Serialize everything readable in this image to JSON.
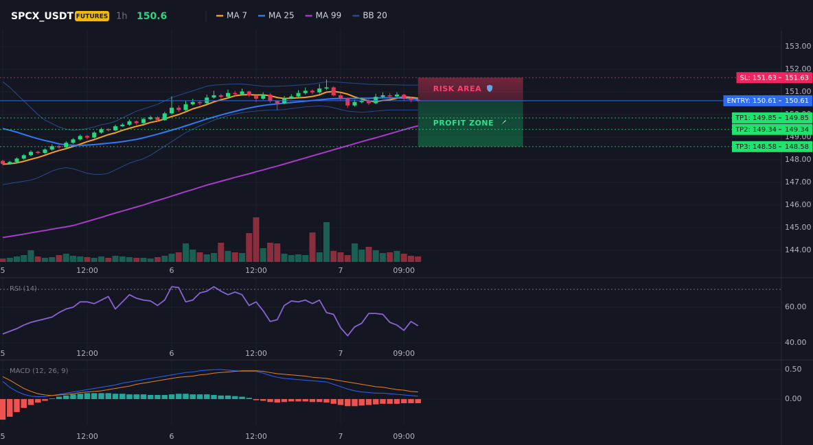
{
  "header": {
    "symbol": "SPCX_USDT",
    "badge": "FUTURES",
    "interval": "1h",
    "price": 150.6
  },
  "chart_data": [
    {
      "type": "candlestick",
      "xlim": [
        -0.39,
        110.63
      ],
      "xticks": [
        {
          "value": 0,
          "label": "5"
        },
        {
          "value": 12,
          "label": "12:00"
        },
        {
          "value": 24,
          "label": "6"
        },
        {
          "value": 36,
          "label": "12:00"
        },
        {
          "value": 48,
          "label": "7"
        },
        {
          "value": 57,
          "label": "09:00"
        }
      ],
      "ylim": [
        143.48,
        153.7
      ],
      "yticks": [
        {
          "value": 144,
          "label": "144.00"
        },
        {
          "value": 145,
          "label": "145.00"
        },
        {
          "value": 146,
          "label": "146.00"
        },
        {
          "value": 147,
          "label": "147.00"
        },
        {
          "value": 148,
          "label": "148.00"
        },
        {
          "value": 149,
          "label": "149.00"
        },
        {
          "value": 150,
          "label": "150.00"
        },
        {
          "value": 151,
          "label": "151.00"
        },
        {
          "value": 152,
          "label": "152.00"
        },
        {
          "value": 153,
          "label": "153.00"
        }
      ],
      "up_color": "#26d97f",
      "down_color": "#e8365a",
      "volume_colors": {
        "up": "#1b5e52",
        "down": "#8a2d3c"
      },
      "open": [
        147.95,
        147.82,
        147.9,
        148.05,
        148.2,
        148.35,
        148.3,
        148.45,
        148.6,
        148.55,
        148.75,
        148.9,
        149.05,
        148.98,
        149.2,
        149.35,
        149.3,
        149.48,
        149.55,
        149.7,
        149.62,
        149.8,
        149.88,
        149.75,
        150.05,
        150.3,
        150.2,
        150.45,
        150.55,
        150.5,
        150.75,
        150.85,
        150.78,
        150.95,
        150.9,
        151.02,
        150.85,
        150.7,
        150.88,
        150.6,
        150.5,
        150.72,
        150.8,
        150.95,
        151.05,
        150.98,
        151.15,
        151.2,
        150.85,
        150.7,
        150.4,
        150.55,
        150.62,
        150.5,
        150.78,
        150.85,
        150.8,
        150.88,
        150.7,
        150.65
      ],
      "high": [
        148.0,
        147.95,
        148.1,
        148.25,
        148.42,
        148.4,
        148.5,
        148.68,
        148.65,
        148.82,
        148.95,
        149.12,
        149.1,
        149.26,
        149.42,
        149.4,
        149.55,
        149.62,
        149.78,
        149.74,
        149.86,
        149.95,
        149.92,
        150.12,
        150.8,
        150.4,
        150.6,
        150.7,
        150.62,
        150.88,
        151.05,
        150.92,
        151.1,
        151.05,
        151.15,
        151.05,
        150.85,
        150.98,
        150.95,
        150.62,
        150.82,
        150.9,
        151.08,
        151.2,
        151.12,
        151.35,
        151.55,
        151.25,
        150.95,
        150.75,
        150.65,
        150.75,
        150.68,
        150.92,
        150.98,
        150.95,
        150.98,
        150.92,
        150.78,
        150.72
      ],
      "low": [
        147.75,
        147.78,
        147.86,
        148.0,
        148.15,
        148.25,
        148.26,
        148.4,
        148.48,
        148.5,
        148.7,
        148.85,
        148.9,
        148.94,
        149.15,
        149.25,
        149.26,
        149.45,
        149.5,
        149.55,
        149.58,
        149.75,
        149.7,
        149.72,
        150.0,
        150.12,
        150.15,
        150.4,
        150.42,
        150.46,
        150.7,
        150.7,
        150.74,
        150.82,
        150.85,
        150.78,
        150.55,
        150.65,
        150.52,
        150.2,
        150.45,
        150.68,
        150.75,
        150.88,
        150.9,
        150.92,
        151.08,
        150.8,
        150.62,
        150.3,
        150.35,
        150.5,
        150.42,
        150.46,
        150.72,
        150.7,
        150.74,
        150.62,
        150.55,
        150.56
      ],
      "close": [
        147.82,
        147.9,
        148.05,
        148.2,
        148.35,
        148.3,
        148.45,
        148.6,
        148.55,
        148.75,
        148.9,
        149.05,
        148.98,
        149.2,
        149.35,
        149.3,
        149.48,
        149.55,
        149.7,
        149.62,
        149.8,
        149.88,
        149.75,
        150.05,
        150.3,
        150.2,
        150.45,
        150.55,
        150.5,
        150.75,
        150.85,
        150.78,
        150.95,
        150.9,
        151.02,
        150.85,
        150.7,
        150.88,
        150.6,
        150.5,
        150.72,
        150.8,
        150.95,
        151.05,
        150.98,
        151.15,
        151.2,
        150.85,
        150.7,
        150.4,
        150.55,
        150.62,
        150.5,
        150.78,
        150.85,
        150.8,
        150.88,
        150.7,
        150.65,
        150.61
      ],
      "volume": [
        5,
        6,
        8,
        10,
        17,
        8,
        6,
        7,
        10,
        12,
        9,
        8,
        7,
        6,
        8,
        6,
        9,
        8,
        7,
        6,
        6,
        5,
        7,
        9,
        12,
        14,
        27,
        18,
        14,
        11,
        13,
        28,
        16,
        14,
        13,
        42,
        65,
        20,
        28,
        27,
        12,
        10,
        11,
        10,
        43,
        14,
        58,
        16,
        14,
        10,
        27,
        18,
        22,
        17,
        13,
        14,
        16,
        12,
        9,
        8
      ],
      "series": [
        {
          "name": "MA 7",
          "color": "#f7a21b",
          "values": [
            147.8,
            147.82,
            147.86,
            147.93,
            148.02,
            148.1,
            148.2,
            148.31,
            148.41,
            148.49,
            148.59,
            148.69,
            148.8,
            148.89,
            149.0,
            149.11,
            149.19,
            149.3,
            149.39,
            149.48,
            149.55,
            149.65,
            149.71,
            149.8,
            149.91,
            150.0,
            150.12,
            150.25,
            150.34,
            150.44,
            150.56,
            150.65,
            150.73,
            150.83,
            150.87,
            150.88,
            150.86,
            150.87,
            150.83,
            150.75,
            150.71,
            150.72,
            150.74,
            150.76,
            150.8,
            150.87,
            150.99,
            151.02,
            150.98,
            150.9,
            150.78,
            150.68,
            150.6,
            150.57,
            150.62,
            150.65,
            150.72,
            150.78,
            150.76,
            150.72
          ]
        },
        {
          "name": "MA 25",
          "color": "#3179f5",
          "values": [
            149.38,
            149.3,
            149.22,
            149.12,
            149.02,
            148.93,
            148.85,
            148.78,
            148.7,
            148.66,
            148.64,
            148.64,
            148.65,
            148.67,
            148.7,
            148.73,
            148.76,
            148.8,
            148.85,
            148.9,
            148.97,
            149.05,
            149.13,
            149.22,
            149.31,
            149.4,
            149.5,
            149.6,
            149.7,
            149.8,
            149.89,
            149.98,
            150.06,
            150.14,
            150.22,
            150.29,
            150.35,
            150.4,
            150.44,
            150.47,
            150.5,
            150.53,
            150.56,
            150.59,
            150.62,
            150.65,
            150.68,
            150.7,
            150.71,
            150.71,
            150.71,
            150.72,
            150.72,
            150.73,
            150.74,
            150.74,
            150.73,
            150.72,
            150.7,
            150.68
          ]
        },
        {
          "name": "MA 99",
          "color": "#a93bc9",
          "values": [
            144.56,
            144.61,
            144.66,
            144.71,
            144.77,
            144.82,
            144.87,
            144.93,
            144.98,
            145.03,
            145.09,
            145.18,
            145.27,
            145.36,
            145.45,
            145.55,
            145.64,
            145.73,
            145.82,
            145.91,
            146.0,
            146.1,
            146.2,
            146.29,
            146.39,
            146.49,
            146.59,
            146.68,
            146.78,
            146.88,
            146.96,
            147.05,
            147.13,
            147.22,
            147.3,
            147.38,
            147.47,
            147.55,
            147.64,
            147.72,
            147.81,
            147.9,
            147.99,
            148.08,
            148.17,
            148.26,
            148.35,
            148.44,
            148.53,
            148.62,
            148.71,
            148.8,
            148.89,
            148.97,
            149.06,
            149.15,
            149.24,
            149.33,
            149.42,
            149.5
          ]
        },
        {
          "name": "BB 20",
          "color": "#2a4a8c",
          "upper": [
            151.45,
            151.2,
            150.9,
            150.6,
            150.3,
            150.0,
            149.75,
            149.6,
            149.45,
            149.35,
            149.3,
            149.33,
            149.38,
            149.45,
            149.55,
            149.6,
            149.7,
            149.85,
            150.0,
            150.15,
            150.25,
            150.35,
            150.45,
            150.6,
            150.75,
            150.85,
            150.95,
            151.05,
            151.15,
            151.25,
            151.3,
            151.32,
            151.34,
            151.35,
            151.35,
            151.32,
            151.28,
            151.25,
            151.24,
            151.25,
            151.26,
            151.28,
            151.3,
            151.32,
            151.35,
            151.4,
            151.45,
            151.45,
            151.42,
            151.4,
            151.38,
            151.36,
            151.34,
            151.33,
            151.32,
            151.32,
            151.31,
            151.3,
            151.3,
            151.3
          ],
          "lower": [
            146.9,
            146.95,
            147.0,
            147.05,
            147.1,
            147.2,
            147.35,
            147.5,
            147.6,
            147.65,
            147.6,
            147.5,
            147.4,
            147.35,
            147.35,
            147.4,
            147.55,
            147.7,
            147.85,
            147.95,
            148.05,
            148.2,
            148.4,
            148.6,
            148.8,
            149.0,
            149.2,
            149.35,
            149.5,
            149.62,
            149.75,
            149.85,
            149.95,
            150.02,
            150.08,
            150.12,
            150.15,
            150.18,
            150.2,
            150.2,
            150.22,
            150.26,
            150.3,
            150.34,
            150.36,
            150.38,
            150.36,
            150.3,
            150.22,
            150.15,
            150.12,
            150.1,
            150.12,
            150.15,
            150.18,
            150.2,
            150.2,
            150.2,
            150.2,
            150.2
          ]
        }
      ],
      "levels": [
        {
          "label": "SL: 151.63",
          "value": 151.63,
          "color": "#f0245f"
        },
        {
          "label": "ENTRY: 150.61",
          "value": 150.61,
          "color": "#2f6bf0"
        },
        {
          "label": "TP1: 149.85",
          "value": 149.85,
          "color": "#1fe36e"
        },
        {
          "label": "TP2: 149.34",
          "value": 149.34,
          "color": "#1fe36e"
        },
        {
          "label": "TP3: 148.58",
          "value": 148.58,
          "color": "#1fe36e"
        }
      ],
      "zones": [
        {
          "label": "RISK AREA"
        },
        {
          "label": "PROFIT ZONE"
        }
      ]
    },
    {
      "type": "line",
      "title": "RSI (14)",
      "color": "#8a63d2",
      "xlim": [
        -0.39,
        110.63
      ],
      "xticks": [
        {
          "value": 0,
          "label": "5"
        },
        {
          "value": 12,
          "label": "12:00"
        },
        {
          "value": 24,
          "label": "6"
        },
        {
          "value": 36,
          "label": "12:00"
        },
        {
          "value": 48,
          "label": "7"
        },
        {
          "value": 57,
          "label": "09:00"
        }
      ],
      "ylim": [
        33.1,
        75.4
      ],
      "yticks": [
        {
          "value": 40,
          "label": "40.00"
        },
        {
          "value": 60,
          "label": "60.00"
        }
      ],
      "levels": [
        70
      ],
      "values": [
        45,
        46.5,
        48,
        50,
        51.5,
        52.5,
        53.5,
        54.5,
        57,
        59,
        60,
        63,
        63,
        62,
        64,
        66,
        59,
        63,
        67,
        65,
        64,
        63.5,
        61,
        64,
        71.5,
        71,
        63,
        64,
        68,
        69,
        71.5,
        69,
        67,
        68.5,
        67,
        61,
        63,
        58,
        52,
        53,
        61,
        63.5,
        63,
        64,
        62,
        64,
        57,
        56,
        48.5,
        44,
        49,
        51,
        56.5,
        56.5,
        56,
        51.5,
        50,
        47,
        52,
        49.6
      ]
    },
    {
      "type": "bar",
      "title": "MACD (12, 26, 9)",
      "xlim": [
        -0.39,
        110.63
      ],
      "xticks": [
        {
          "value": 0,
          "label": "5"
        },
        {
          "value": 12,
          "label": "12:00"
        },
        {
          "value": 24,
          "label": "6"
        },
        {
          "value": 36,
          "label": "12:00"
        },
        {
          "value": 48,
          "label": "7"
        },
        {
          "value": 57,
          "label": "09:00"
        }
      ],
      "ylim": [
        -0.5,
        0.628
      ],
      "yticks": [
        {
          "value": 0,
          "label": "0.00"
        },
        {
          "value": 0.5,
          "label": "0.50"
        }
      ],
      "colors": {
        "up": "#26a69a",
        "down": "#ef5350"
      },
      "values": [
        -0.35,
        -0.3,
        -0.22,
        -0.15,
        -0.1,
        -0.06,
        -0.03,
        0.01,
        0.04,
        0.06,
        0.08,
        0.09,
        0.1,
        0.1,
        0.1,
        0.1,
        0.09,
        0.09,
        0.08,
        0.08,
        0.08,
        0.07,
        0.07,
        0.07,
        0.08,
        0.09,
        0.09,
        0.08,
        0.08,
        0.08,
        0.07,
        0.06,
        0.06,
        0.05,
        0.04,
        0.02,
        -0.02,
        -0.03,
        -0.05,
        -0.06,
        -0.05,
        -0.04,
        -0.04,
        -0.04,
        -0.05,
        -0.05,
        -0.06,
        -0.08,
        -0.1,
        -0.12,
        -0.12,
        -0.11,
        -0.1,
        -0.09,
        -0.08,
        -0.08,
        -0.08,
        -0.07,
        -0.07,
        -0.07
      ],
      "series": [
        {
          "color": "#2962ff",
          "values": [
            0.3,
            0.2,
            0.13,
            0.08,
            0.05,
            0.04,
            0.04,
            0.06,
            0.08,
            0.1,
            0.12,
            0.14,
            0.16,
            0.18,
            0.2,
            0.22,
            0.24,
            0.27,
            0.29,
            0.31,
            0.33,
            0.35,
            0.37,
            0.39,
            0.41,
            0.43,
            0.45,
            0.46,
            0.48,
            0.49,
            0.5,
            0.5,
            0.49,
            0.48,
            0.47,
            0.47,
            0.47,
            0.44,
            0.4,
            0.37,
            0.35,
            0.34,
            0.33,
            0.32,
            0.31,
            0.3,
            0.29,
            0.25,
            0.21,
            0.17,
            0.14,
            0.12,
            0.11,
            0.1,
            0.1,
            0.09,
            0.08,
            0.07,
            0.06,
            0.05
          ]
        },
        {
          "color": "#e8821e",
          "values": [
            0.38,
            0.32,
            0.25,
            0.18,
            0.13,
            0.09,
            0.07,
            0.06,
            0.07,
            0.08,
            0.09,
            0.11,
            0.12,
            0.13,
            0.14,
            0.16,
            0.18,
            0.2,
            0.22,
            0.25,
            0.27,
            0.29,
            0.31,
            0.33,
            0.35,
            0.37,
            0.38,
            0.39,
            0.41,
            0.42,
            0.44,
            0.45,
            0.46,
            0.47,
            0.48,
            0.48,
            0.48,
            0.47,
            0.45,
            0.43,
            0.42,
            0.41,
            0.4,
            0.39,
            0.37,
            0.36,
            0.35,
            0.33,
            0.31,
            0.29,
            0.27,
            0.25,
            0.23,
            0.21,
            0.2,
            0.18,
            0.16,
            0.15,
            0.13,
            0.12
          ]
        }
      ]
    }
  ]
}
